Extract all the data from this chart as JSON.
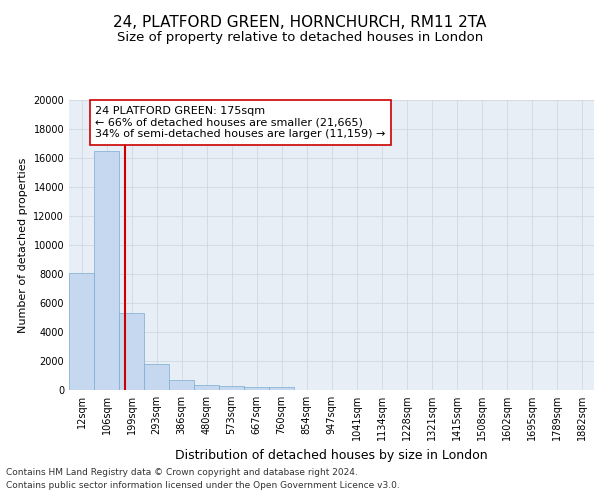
{
  "title1": "24, PLATFORD GREEN, HORNCHURCH, RM11 2TA",
  "title2": "Size of property relative to detached houses in London",
  "xlabel": "Distribution of detached houses by size in London",
  "ylabel": "Number of detached properties",
  "categories": [
    "12sqm",
    "106sqm",
    "199sqm",
    "293sqm",
    "386sqm",
    "480sqm",
    "573sqm",
    "667sqm",
    "760sqm",
    "854sqm",
    "947sqm",
    "1041sqm",
    "1134sqm",
    "1228sqm",
    "1321sqm",
    "1415sqm",
    "1508sqm",
    "1602sqm",
    "1695sqm",
    "1789sqm",
    "1882sqm"
  ],
  "values": [
    8100,
    16500,
    5300,
    1800,
    700,
    350,
    270,
    220,
    190,
    0,
    0,
    0,
    0,
    0,
    0,
    0,
    0,
    0,
    0,
    0,
    0
  ],
  "bar_color": "#c5d8ef",
  "bar_edge_color": "#7aacce",
  "vline_color": "#cc0000",
  "vline_pos": 1.72,
  "annotation_line1": "24 PLATFORD GREEN: 175sqm",
  "annotation_line2": "← 66% of detached houses are smaller (21,665)",
  "annotation_line3": "34% of semi-detached houses are larger (11,159) →",
  "annotation_box_fc": "#ffffff",
  "annotation_box_ec": "#cc0000",
  "ylim": [
    0,
    20000
  ],
  "yticks": [
    0,
    2000,
    4000,
    6000,
    8000,
    10000,
    12000,
    14000,
    16000,
    18000,
    20000
  ],
  "grid_color": "#d0d8e4",
  "bg_color": "#e8eef5",
  "footer1": "Contains HM Land Registry data © Crown copyright and database right 2024.",
  "footer2": "Contains public sector information licensed under the Open Government Licence v3.0.",
  "title1_fontsize": 11,
  "title2_fontsize": 9.5,
  "xlabel_fontsize": 9,
  "ylabel_fontsize": 8,
  "tick_fontsize": 7,
  "ann_fontsize": 8,
  "footer_fontsize": 6.5
}
